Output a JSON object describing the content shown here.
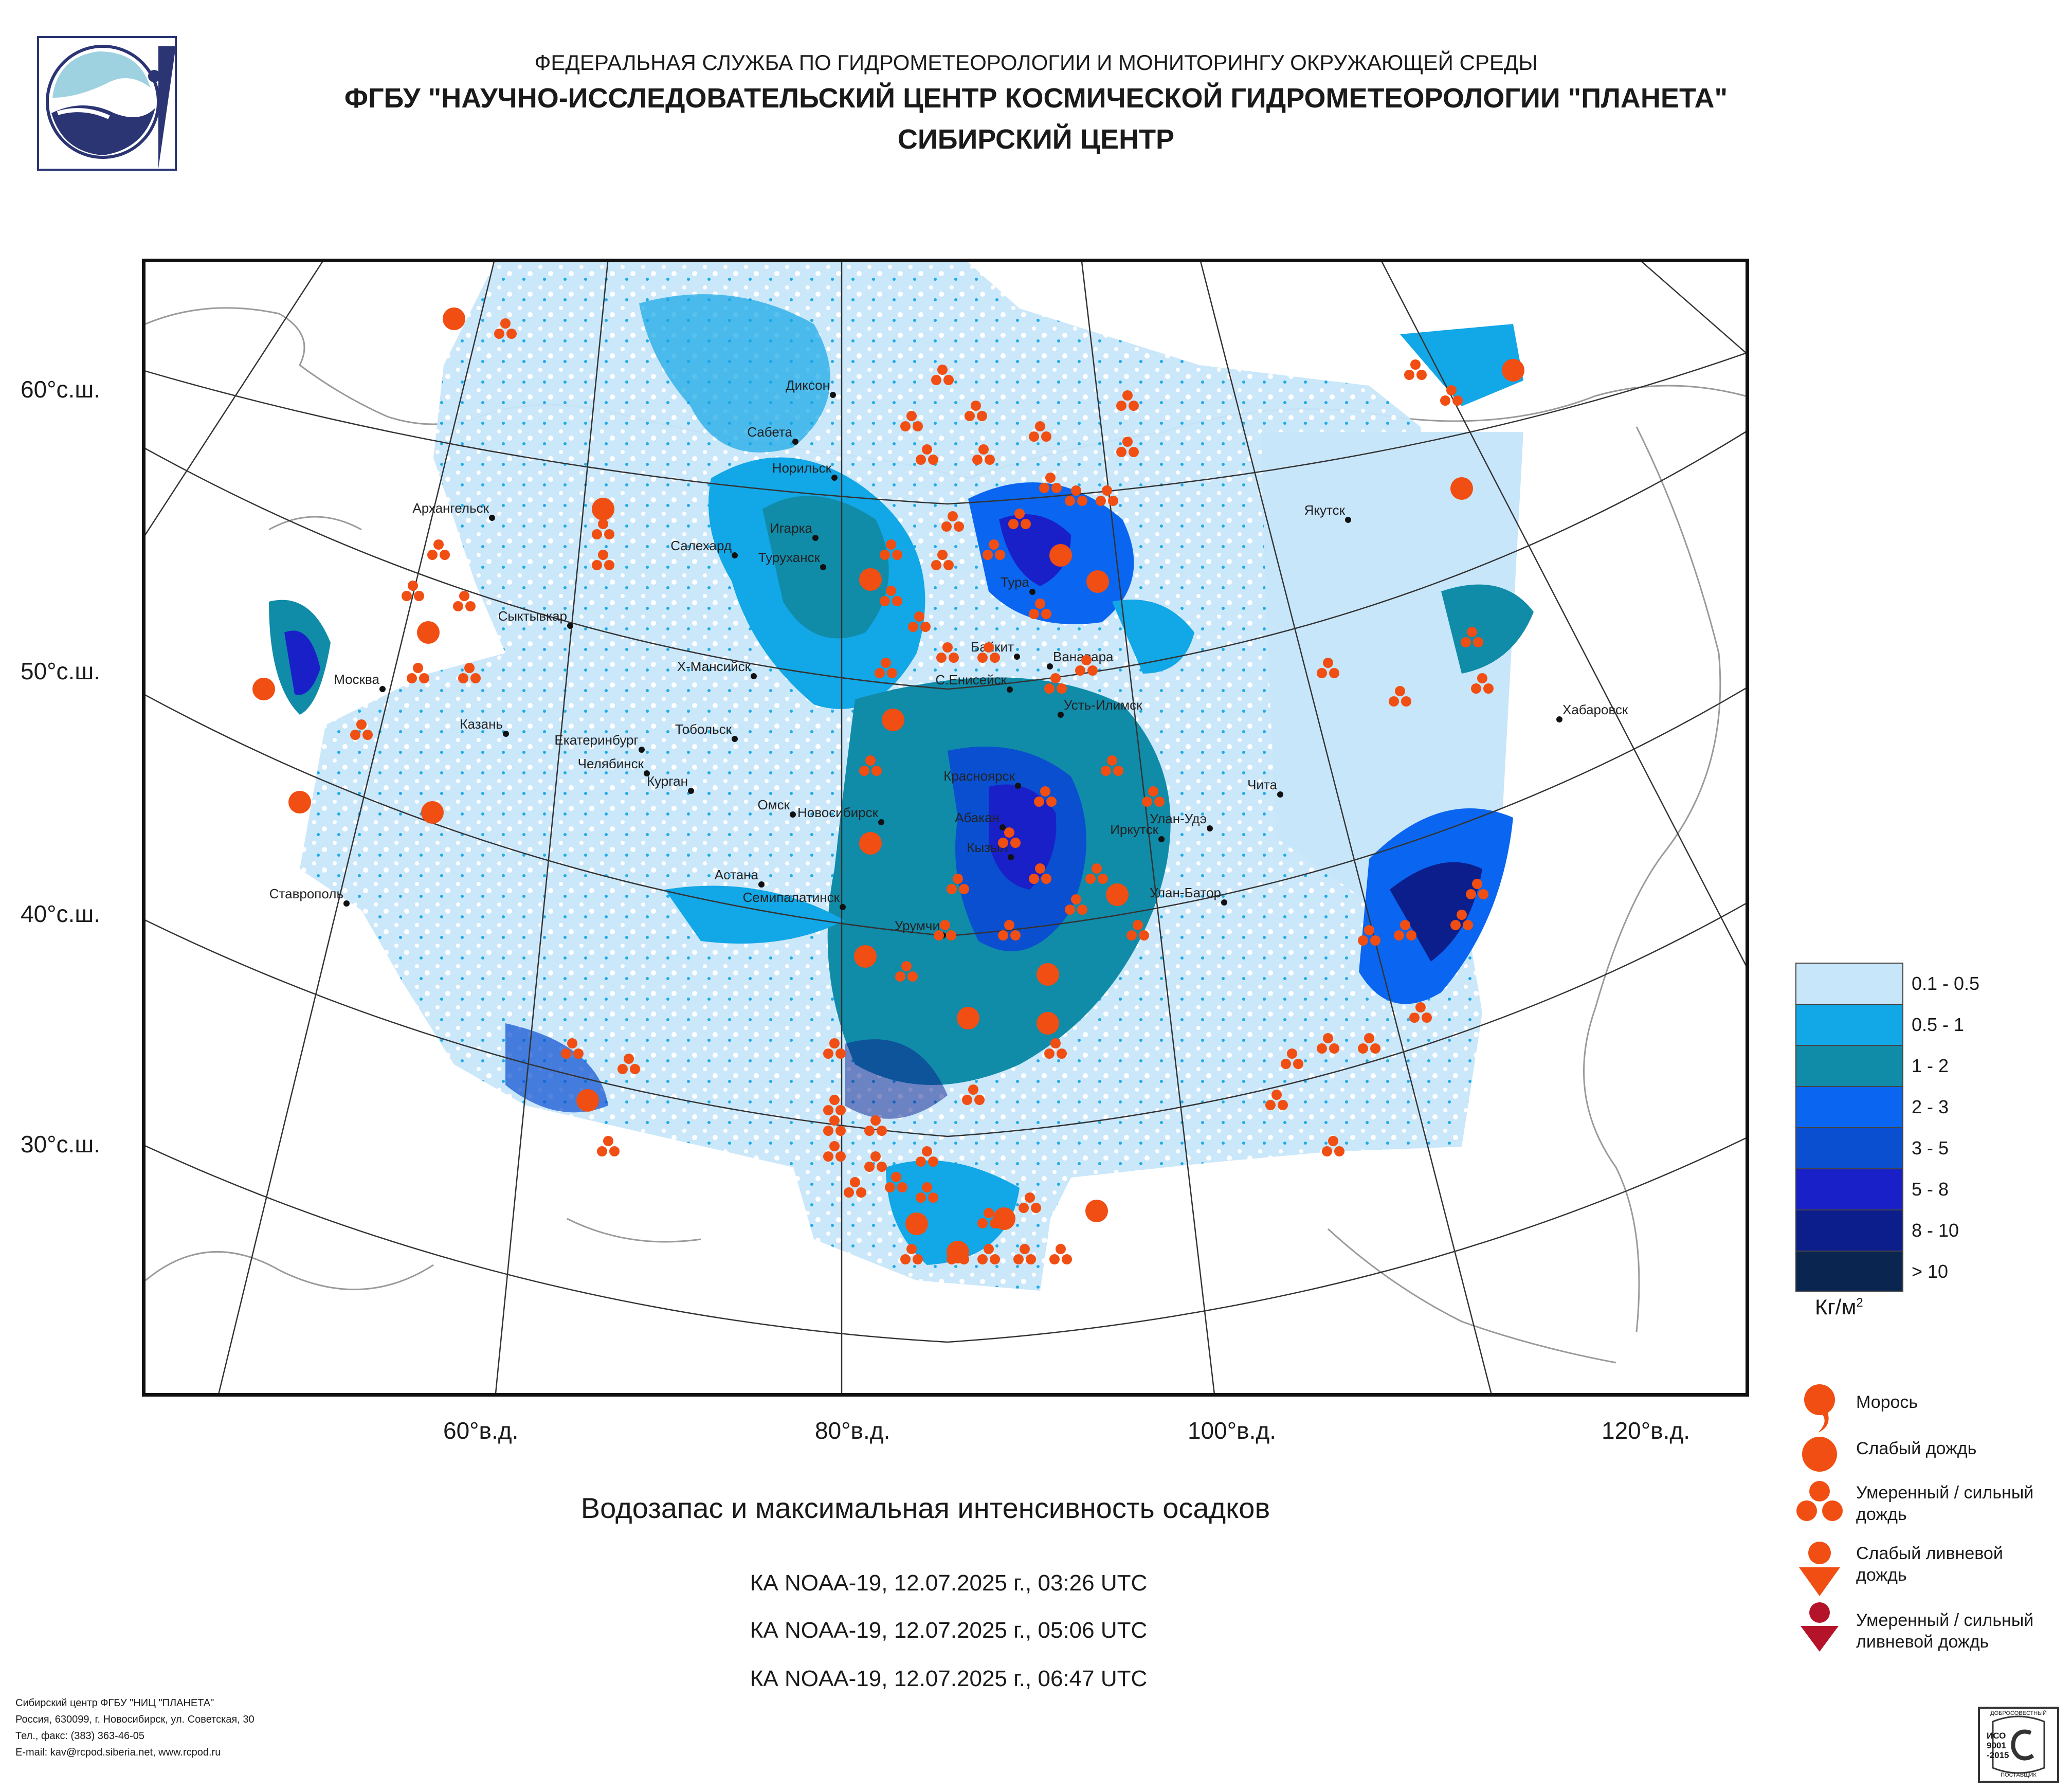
{
  "header": {
    "line1": "ФЕДЕРАЛЬНАЯ СЛУЖБА ПО ГИДРОМЕТЕОРОЛОГИИ И МОНИТОРИНГУ ОКРУЖАЮЩЕЙ СРЕДЫ",
    "line2": "ФГБУ \"НАУЧНО-ИССЛЕДОВАТЕЛЬСКИЙ ЦЕНТР КОСМИЧЕСКОЙ ГИДРОМЕТЕОРОЛОГИИ \"ПЛАНЕТА\"",
    "line3": "СИБИРСКИЙ ЦЕНТР"
  },
  "map": {
    "lat_labels": [
      "60°с.ш.",
      "50°с.ш.",
      "40°с.ш.",
      "30°с.ш."
    ],
    "lon_labels": [
      "60°в.д.",
      "80°в.д.",
      "100°в.д.",
      "120°в.д."
    ],
    "cities": [
      "Диксон",
      "Сабета",
      "Норильск",
      "Архангельск",
      "Игарка",
      "Салехард",
      "Туруханск",
      "Тура",
      "Якутск",
      "Сыктывкар",
      "Байкит",
      "Ванавара",
      "Х-Мансийск",
      "С.Енисейск",
      "Москва",
      "Усть-Илимск",
      "Хабаровск",
      "Казань",
      "Тобольск",
      "Екатеринбург",
      "Челябинск",
      "Курган",
      "Красноярск",
      "Чита",
      "Омск",
      "Новосибирск",
      "Абакан",
      "Улан-Удэ",
      "Иркутск",
      "Кызыл",
      "Астана",
      "Улан-Батор",
      "Семипалатинск",
      "Ставрополь",
      "Урумчи"
    ]
  },
  "legend": {
    "ranges": [
      {
        "label": "0.1 - 0.5",
        "color": "#c8e6fa"
      },
      {
        "label": "0.5 - 1",
        "color": "#12a7e6"
      },
      {
        "label": "1 - 2",
        "color": "#108ba8"
      },
      {
        "label": "2 - 3",
        "color": "#0a66f0"
      },
      {
        "label": "3 - 5",
        "color": "#0a4fd0"
      },
      {
        "label": "5 - 8",
        "color": "#1a20c8"
      },
      {
        "label": "8 - 10",
        "color": "#0c1e8c"
      },
      {
        "label": "> 10",
        "color": "#0a2650"
      }
    ],
    "unit_base": "Кг/м",
    "unit_exp": "2",
    "symbols": [
      {
        "label": "Морось",
        "icon": "drizzle-icon",
        "color": "#f04e12"
      },
      {
        "label": "Слабый дождь",
        "icon": "light-rain-icon",
        "color": "#f04e12"
      },
      {
        "label": "Умеренный / сильный дождь",
        "icon": "moderate-rain-icon",
        "color": "#f04e12"
      },
      {
        "label": "Слабый ливневой дождь",
        "icon": "light-shower-icon",
        "color": "#f04e12"
      },
      {
        "label": "Умеренный / сильный ливневой дождь",
        "icon": "heavy-shower-icon",
        "color": "#b5132a"
      }
    ]
  },
  "title": "Водозапас и максимальная интенсивность осадков",
  "passes": [
    "КА NOAA-19, 12.07.2025 г., 03:26 UTC",
    "КА NOAA-19, 12.07.2025 г., 05:06 UTC",
    "КА NOAA-19, 12.07.2025 г., 06:47 UTC"
  ],
  "footer": [
    "Сибирский центр ФГБУ \"НИЦ \"ПЛАНЕТА\"",
    "Россия, 630099, г. Новосибирск, ул. Советская, 30",
    "Тел., факс: (383) 363-46-05",
    "E-mail: kav@rcpod.siberia.net, www.rcpod.ru"
  ],
  "iso_badge": {
    "top": "ДОБРОСОВЕСТНЫЙ",
    "l1": "ИСО",
    "l2": "9001",
    "l3": "-2015",
    "bottom": "ПОСТАВЩИК"
  }
}
